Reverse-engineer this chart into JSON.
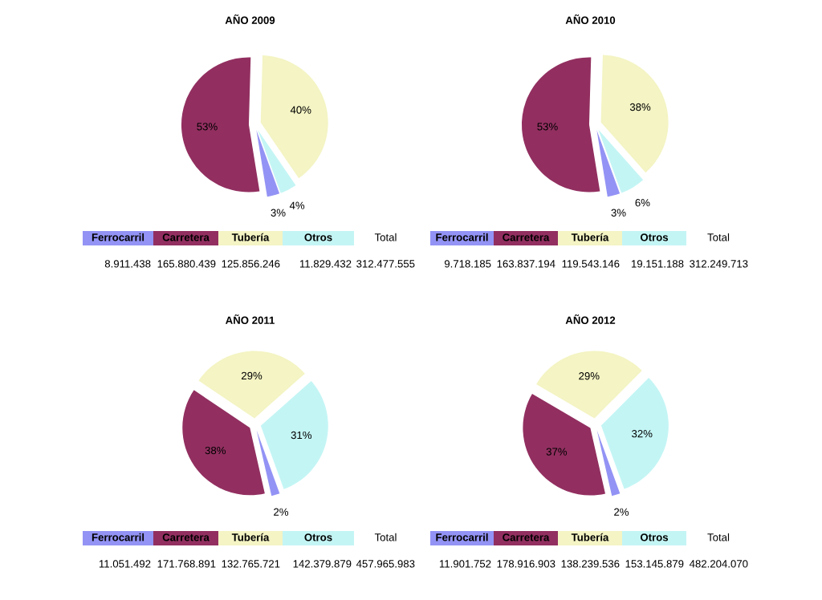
{
  "chart_data": [
    {
      "type": "pie",
      "title": "AÑO 2009",
      "categories": [
        "Ferrocarril",
        "Carretera",
        "Tubería",
        "Otros"
      ],
      "values": [
        3,
        53,
        40,
        4
      ],
      "colors": [
        "#9393f5",
        "#922f60",
        "#f4f4c4",
        "#c4f5f5"
      ],
      "value_labels": [
        "3%",
        "53%",
        "40%",
        "4%"
      ],
      "annotations": [
        "Total",
        "8.911.438",
        "165.880.439",
        "125.856.246",
        "11.829.432"
      ],
      "totals": [
        "312.477.555"
      ],
      "legend": "bottom"
    },
    {
      "type": "pie",
      "title": "AÑO 2010",
      "categories": [
        "Ferrocarril",
        "Carretera",
        "Tubería",
        "Otros"
      ],
      "values": [
        3,
        53,
        38,
        6
      ],
      "colors": [
        "#9393f5",
        "#922f60",
        "#f4f4c4",
        "#c4f5f5"
      ],
      "value_labels": [
        "3%",
        "53%",
        "38%",
        "6%"
      ],
      "annotations": [
        "Total",
        "9.718.185",
        "163.837.194",
        "119.543.146",
        "19.151.188"
      ],
      "totals": [
        "312.249.713"
      ],
      "legend": "bottom"
    },
    {
      "type": "pie",
      "title": "AÑO 2011",
      "categories": [
        "Ferrocarril",
        "Carretera",
        "Tubería",
        "Otros"
      ],
      "values": [
        2,
        38,
        29,
        31
      ],
      "colors": [
        "#9393f5",
        "#922f60",
        "#f4f4c4",
        "#c4f5f5"
      ],
      "value_labels": [
        "2%",
        "38%",
        "29%",
        "31%"
      ],
      "annotations": [
        "Total",
        "11.051.492",
        "171.768.891",
        "132.765.721",
        "142.379.879"
      ],
      "totals": [
        "457.965.983"
      ],
      "legend": "bottom"
    },
    {
      "type": "pie",
      "title": "AÑO 2012",
      "categories": [
        "Ferrocarril",
        "Carretera",
        "Tubería",
        "Otros"
      ],
      "values": [
        2,
        37,
        29,
        32
      ],
      "colors": [
        "#9393f5",
        "#922f60",
        "#f4f4c4",
        "#c4f5f5"
      ],
      "value_labels": [
        "2%",
        "37%",
        "29%",
        "32%"
      ],
      "annotations": [
        "Total",
        "11.901.752",
        "178.916.903",
        "138.239.536",
        "153.145.879"
      ],
      "totals": [
        "482.204.070"
      ],
      "legend": "bottom"
    }
  ]
}
